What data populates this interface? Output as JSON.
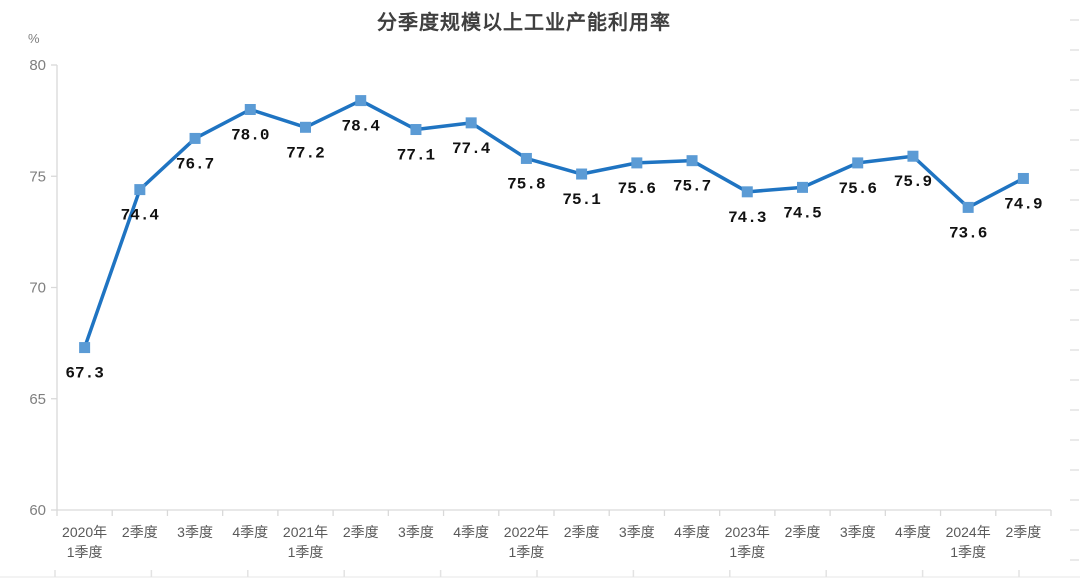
{
  "chart_data": {
    "type": "line",
    "title": "分季度规模以上工业产能利用率",
    "unit_label": "%",
    "categories": [
      [
        "2020年",
        "1季度"
      ],
      [
        "2季度"
      ],
      [
        "3季度"
      ],
      [
        "4季度"
      ],
      [
        "2021年",
        "1季度"
      ],
      [
        "2季度"
      ],
      [
        "3季度"
      ],
      [
        "4季度"
      ],
      [
        "2022年",
        "1季度"
      ],
      [
        "2季度"
      ],
      [
        "3季度"
      ],
      [
        "4季度"
      ],
      [
        "2023年",
        "1季度"
      ],
      [
        "2季度"
      ],
      [
        "3季度"
      ],
      [
        "4季度"
      ],
      [
        "2024年",
        "1季度"
      ],
      [
        "2季度"
      ]
    ],
    "values": [
      67.3,
      74.4,
      76.7,
      78.0,
      77.2,
      78.4,
      77.1,
      77.4,
      75.8,
      75.1,
      75.6,
      75.7,
      74.3,
      74.5,
      75.6,
      75.9,
      73.6,
      74.9
    ],
    "ylim": [
      60,
      80
    ],
    "yticks": [
      60,
      65,
      70,
      75,
      80
    ],
    "grid": false,
    "legend": null,
    "layout_hints": {
      "data_labels_position": "below-point",
      "marker_shape": "square",
      "has_bottom_ruler_decor": true,
      "has_right_tick_decor": true
    },
    "colors": {
      "line": "#1f74c2",
      "marker": "#5b9bd5",
      "axis": "#d9d9d9",
      "y_tick_label": "#7f7f7f",
      "x_tick_label": "#595959",
      "data_label": "#111111",
      "title": "#3f3f3f",
      "decor": "#e3e3e3"
    }
  }
}
